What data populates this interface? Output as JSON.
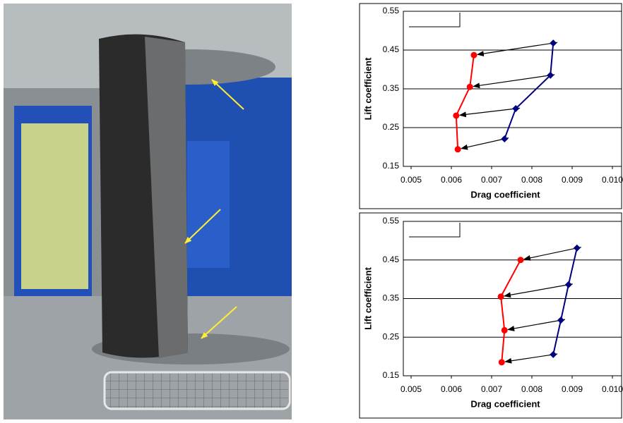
{
  "chart_data": [
    {
      "type": "line",
      "x_label": "Drag coefficient",
      "y_label": "Lift coefficient",
      "xlim": [
        0.005,
        0.01
      ],
      "xticks": [
        0.005,
        0.006,
        0.007,
        0.008,
        0.009,
        {
          "value": 0.01,
          "label": "0.010"
        }
      ],
      "ylim": [
        0.15,
        0.55
      ],
      "yticks": [
        0.15,
        0.25,
        0.35,
        0.45,
        0.55
      ],
      "grid": true,
      "series": [
        {
          "color": "#000080",
          "marker": "diamond",
          "x": [
            0.00853,
            0.00846,
            0.0076,
            0.00732
          ],
          "values": [
            0.468,
            0.385,
            0.299,
            0.221
          ]
        },
        {
          "color": "#ff0000",
          "marker": "circle",
          "x": [
            0.00656,
            0.00646,
            0.00612,
            0.00616
          ],
          "values": [
            0.437,
            0.355,
            0.281,
            0.194
          ]
        }
      ]
    },
    {
      "type": "line",
      "x_label": "Drag coefficient",
      "y_label": "Lift coefficient",
      "xlim": [
        0.005,
        0.01
      ],
      "xticks": [
        0.005,
        0.006,
        0.007,
        0.008,
        0.009,
        {
          "value": 0.01,
          "label": "0.010"
        }
      ],
      "ylim": [
        0.15,
        0.55
      ],
      "yticks": [
        0.15,
        0.25,
        0.35,
        0.45,
        0.55
      ],
      "grid": true,
      "series": [
        {
          "color": "#000080",
          "marker": "diamond",
          "x": [
            0.00912,
            0.00891,
            0.00872,
            0.00853
          ],
          "values": [
            0.481,
            0.386,
            0.294,
            0.205
          ]
        },
        {
          "color": "#ff0000",
          "marker": "circle",
          "x": [
            0.00772,
            0.00723,
            0.00732,
            0.00725
          ],
          "values": [
            0.45,
            0.355,
            0.268,
            0.185
          ]
        }
      ]
    }
  ]
}
